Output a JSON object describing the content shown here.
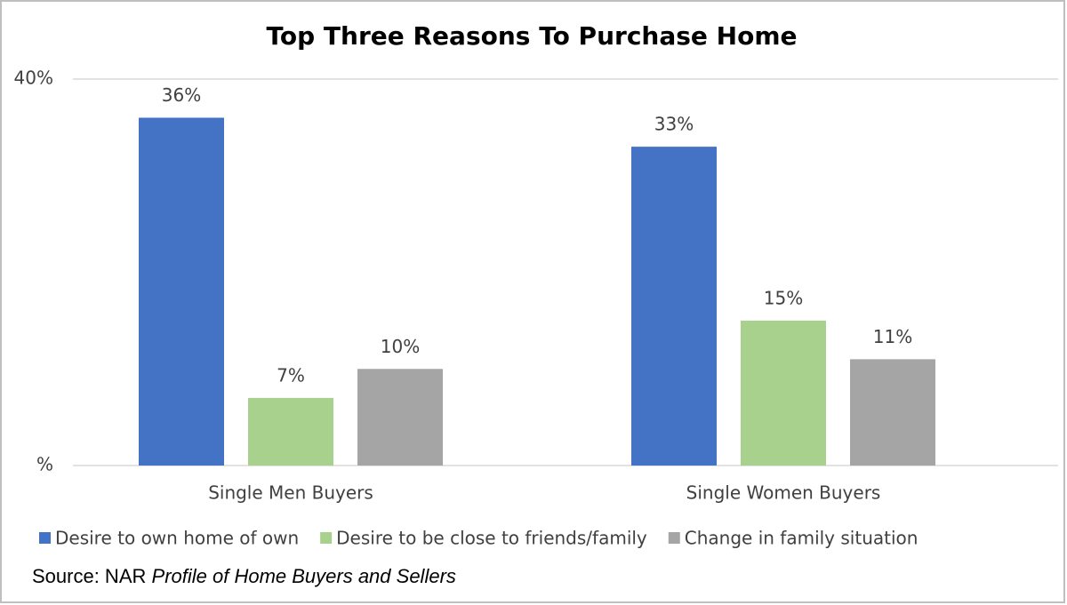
{
  "chart_data": {
    "type": "bar",
    "title": "Top Three Reasons To Purchase Home",
    "categories": [
      "Single Men Buyers",
      "Single Women Buyers"
    ],
    "series": [
      {
        "name": "Desire to own home of own",
        "color": "#4472c4",
        "values": [
          36,
          33
        ],
        "value_labels": [
          "36%",
          "33%"
        ]
      },
      {
        "name": "Desire to be close to friends/family",
        "color": "#a9d18e",
        "values": [
          7,
          15
        ],
        "value_labels": [
          "7%",
          "15%"
        ]
      },
      {
        "name": "Change in family situation",
        "color": "#a5a5a5",
        "values": [
          10,
          11
        ],
        "value_labels": [
          "10%",
          "11%"
        ]
      }
    ],
    "ylim": [
      0,
      40
    ],
    "yticks": [
      {
        "value": 0,
        "label": "%"
      },
      {
        "value": 40,
        "label": "40%"
      }
    ],
    "grid": true,
    "legend": "bottom",
    "source": {
      "prefix": "Source: NAR",
      "title": "Profile of Home Buyers and Sellers"
    }
  }
}
